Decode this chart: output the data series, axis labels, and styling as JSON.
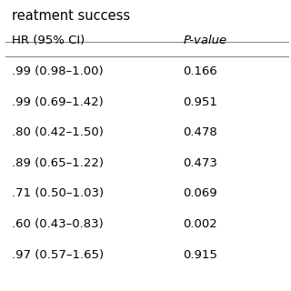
{
  "header_row": [
    "HR (95% CI)",
    "P-value"
  ],
  "title_text": "reatment success",
  "rows": [
    [
      ".99 (0.98–1.00)",
      "0.166"
    ],
    [
      ".99 (0.69–1.42)",
      "0.951"
    ],
    [
      ".80 (0.42–1.50)",
      "0.478"
    ],
    [
      ".89 (0.65–1.22)",
      "0.473"
    ],
    [
      ".71 (0.50–1.03)",
      "0.069"
    ],
    [
      ".60 (0.43–0.83)",
      "0.002"
    ],
    [
      ".97 (0.57–1.65)",
      "0.915"
    ]
  ],
  "bg_color": "#ffffff",
  "text_color": "#000000",
  "line_color": "#888888",
  "font_size": 9.5,
  "title_font_size": 10.5
}
